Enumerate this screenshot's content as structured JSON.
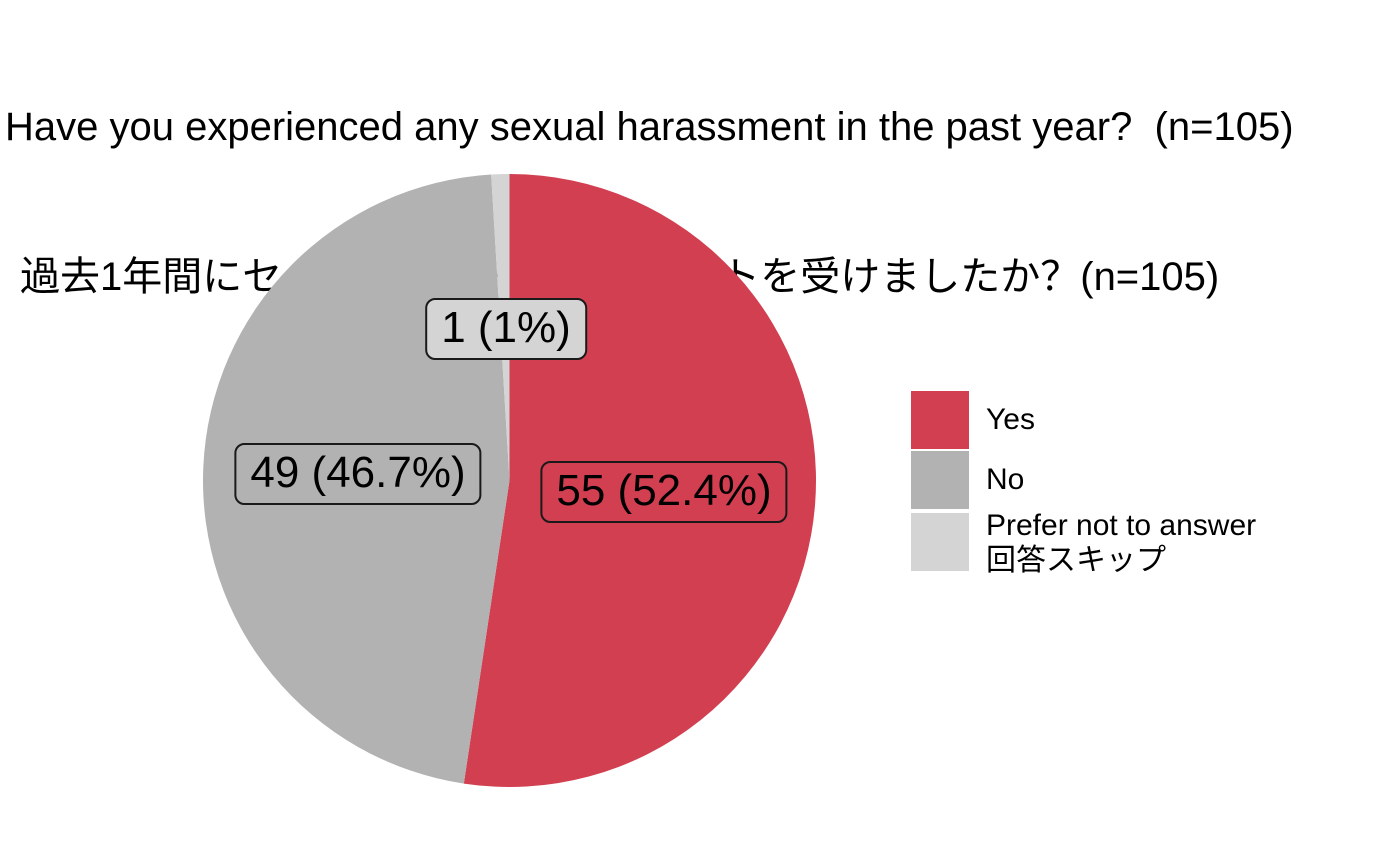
{
  "title": {
    "line1": "Have you experienced any sexual harassment in the past year?  (n=105)",
    "line2": "過去1年間にセクシュアル・ハラスメントを受けましたか？(n=105)"
  },
  "chart_data": {
    "type": "pie",
    "title": "Have you experienced any sexual harassment in the past year?  (n=105)",
    "title_jp": "過去1年間にセクシュアル・ハラスメントを受けましたか？(n=105)",
    "n": 105,
    "start_angle_deg": 0,
    "direction": "clockwise",
    "legend_position": "right",
    "grid": "off",
    "background_color": "#ffffff",
    "slices": [
      {
        "label": "Yes",
        "count": 55,
        "pct": 52.4,
        "data_label": "55 (52.4%)",
        "color": "#d23f51"
      },
      {
        "label": "No",
        "count": 49,
        "pct": 46.7,
        "data_label": "49 (46.7%)",
        "color": "#b2b2b3"
      },
      {
        "label": "Prefer not to answer",
        "label_jp": "回答スキップ",
        "count": 1,
        "pct": 1.0,
        "data_label": "1 (1%)",
        "color": "#d4d4d4"
      }
    ]
  }
}
